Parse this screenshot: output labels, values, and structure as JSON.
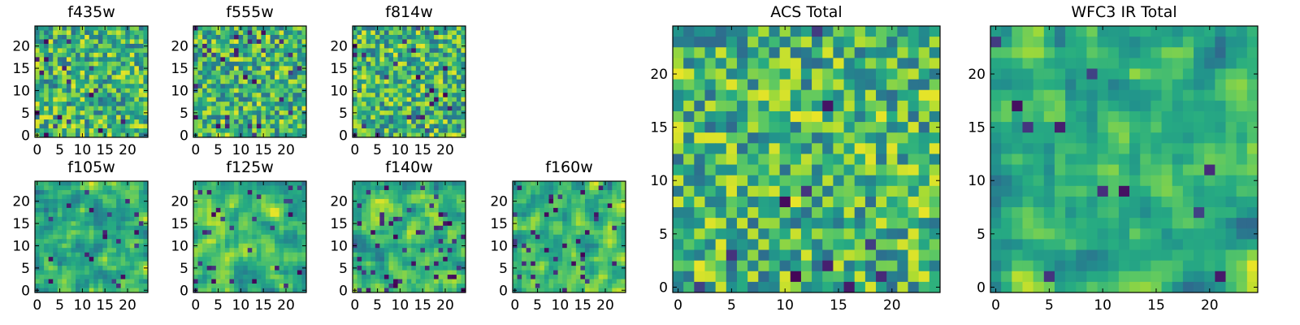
{
  "chart_data": [
    {
      "type": "heatmap",
      "title": "f435w",
      "xlim": [
        0,
        24
      ],
      "ylim": [
        0,
        24
      ],
      "grid": false,
      "xticks": [
        0,
        5,
        10,
        15,
        20
      ],
      "yticks": [
        0,
        5,
        10,
        15,
        20
      ],
      "colormap": "viridis"
    },
    {
      "type": "heatmap",
      "title": "f555w",
      "xlim": [
        0,
        24
      ],
      "ylim": [
        0,
        24
      ],
      "grid": false,
      "xticks": [
        0,
        5,
        10,
        15,
        20
      ],
      "yticks": [
        0,
        5,
        10,
        15,
        20
      ],
      "colormap": "viridis"
    },
    {
      "type": "heatmap",
      "title": "f814w",
      "xlim": [
        0,
        24
      ],
      "ylim": [
        0,
        24
      ],
      "grid": false,
      "xticks": [
        0,
        5,
        10,
        15,
        20
      ],
      "yticks": [
        0,
        5,
        10,
        15,
        20
      ],
      "colormap": "viridis"
    },
    {
      "type": "heatmap",
      "title": "f105w",
      "xlim": [
        0,
        24
      ],
      "ylim": [
        0,
        24
      ],
      "grid": false,
      "xticks": [
        0,
        5,
        10,
        15,
        20
      ],
      "yticks": [
        0,
        5,
        10,
        15,
        20
      ],
      "colormap": "viridis"
    },
    {
      "type": "heatmap",
      "title": "f125w",
      "xlim": [
        0,
        24
      ],
      "ylim": [
        0,
        24
      ],
      "grid": false,
      "xticks": [
        0,
        5,
        10,
        15,
        20
      ],
      "yticks": [
        0,
        5,
        10,
        15,
        20
      ],
      "colormap": "viridis"
    },
    {
      "type": "heatmap",
      "title": "f140w",
      "xlim": [
        0,
        24
      ],
      "ylim": [
        0,
        24
      ],
      "grid": false,
      "xticks": [
        0,
        5,
        10,
        15,
        20
      ],
      "yticks": [
        0,
        5,
        10,
        15,
        20
      ],
      "colormap": "viridis"
    },
    {
      "type": "heatmap",
      "title": "f160w",
      "xlim": [
        0,
        24
      ],
      "ylim": [
        0,
        24
      ],
      "grid": false,
      "xticks": [
        0,
        5,
        10,
        15,
        20
      ],
      "yticks": [
        0,
        5,
        10,
        15,
        20
      ],
      "colormap": "viridis"
    },
    {
      "type": "heatmap",
      "title": "ACS Total",
      "xlim": [
        0,
        24
      ],
      "ylim": [
        0,
        24
      ],
      "grid": false,
      "xticks": [
        0,
        5,
        10,
        15,
        20
      ],
      "yticks": [
        0,
        5,
        10,
        15,
        20
      ],
      "colormap": "viridis"
    },
    {
      "type": "heatmap",
      "title": "WFC3 IR Total",
      "xlim": [
        0,
        24
      ],
      "ylim": [
        0,
        24
      ],
      "grid": false,
      "xticks": [
        0,
        5,
        10,
        15,
        20
      ],
      "yticks": [
        0,
        5,
        10,
        15,
        20
      ],
      "colormap": "viridis"
    }
  ]
}
